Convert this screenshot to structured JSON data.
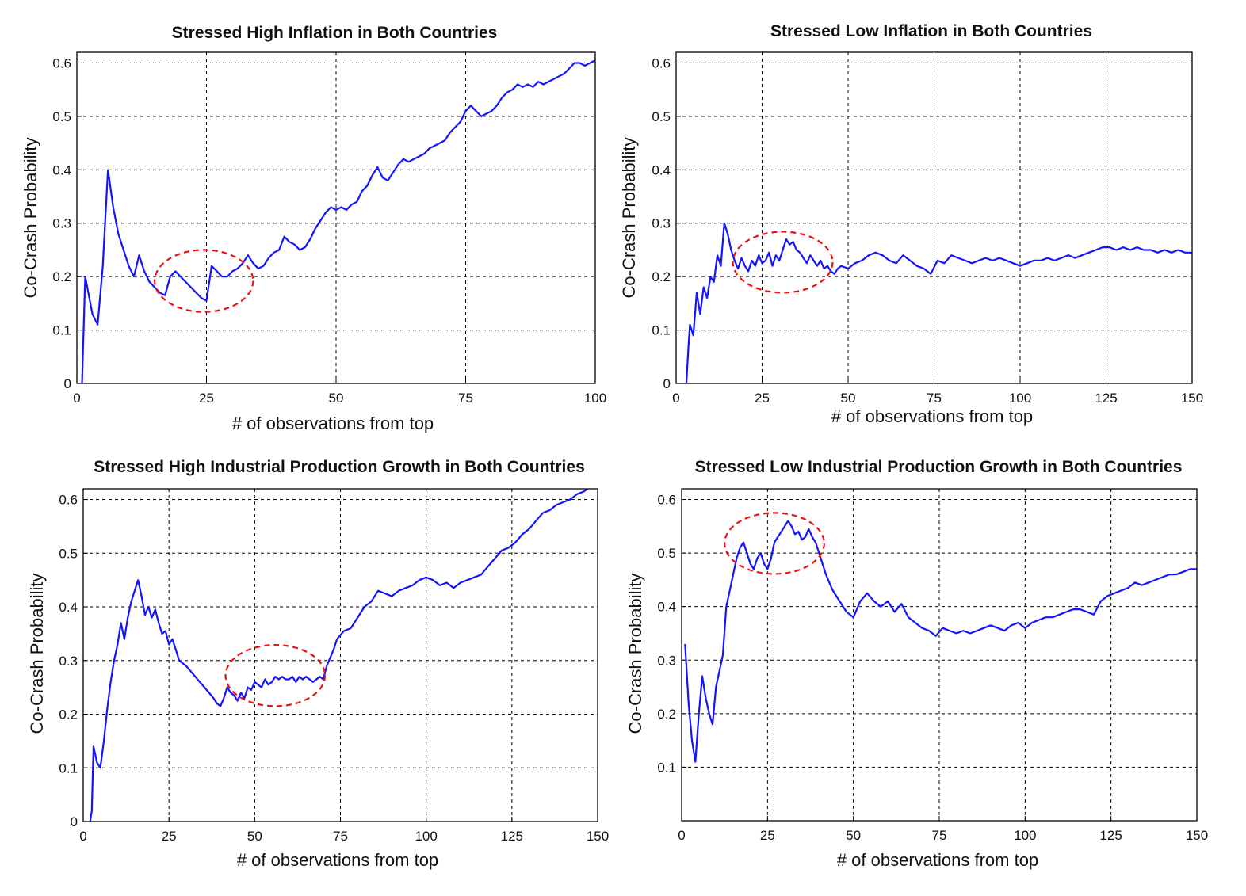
{
  "chart_data": [
    {
      "type": "line",
      "title": "Stressed High Inflation in Both Countries",
      "xlabel": "# of observations from top",
      "ylabel": "Co-Crash Probability",
      "xlim": [
        0,
        100
      ],
      "ylim": [
        0,
        0.62
      ],
      "xticks": [
        0,
        25,
        50,
        75,
        100
      ],
      "xtick_labels": [
        "0",
        "25",
        "50",
        "75",
        "100"
      ],
      "yticks": [
        0,
        0.1,
        0.2,
        0.3,
        0.4,
        0.5,
        0.6
      ],
      "ytick_labels": [
        "0",
        "0.1",
        "0.2",
        "0.3",
        "0.4",
        "0.5",
        "0.6"
      ],
      "grid": true,
      "series_color": "#1414ff",
      "highlight_color": "#ee1111",
      "highlight": {
        "x_center": 24.5,
        "y_center": 0.192,
        "x_radius": 9.5,
        "y_radius": 0.058
      },
      "series": [
        {
          "x": [
            1,
            1.6,
            2,
            3,
            4,
            5,
            6,
            7,
            8,
            9,
            10,
            11,
            12,
            13,
            14,
            15,
            16,
            17,
            18,
            19,
            20,
            21,
            22,
            23,
            24,
            25,
            26,
            27,
            28,
            29,
            30,
            31,
            32,
            33,
            34,
            35,
            36,
            37,
            38,
            39,
            40,
            41,
            42,
            43,
            44,
            45,
            46,
            47,
            48,
            49,
            50,
            51,
            52,
            53,
            54,
            55,
            56,
            57,
            58,
            59,
            60,
            61,
            62,
            63,
            64,
            65,
            66,
            67,
            68,
            69,
            70,
            71,
            72,
            73,
            74,
            75,
            76,
            77,
            78,
            79,
            80,
            81,
            82,
            83,
            84,
            85,
            86,
            87,
            88,
            89,
            90,
            91,
            92,
            93,
            94,
            95,
            96,
            97,
            98,
            99,
            100
          ],
          "y": [
            0,
            0.2,
            0.18,
            0.13,
            0.11,
            0.22,
            0.4,
            0.33,
            0.28,
            0.25,
            0.22,
            0.2,
            0.24,
            0.21,
            0.19,
            0.18,
            0.17,
            0.165,
            0.2,
            0.21,
            0.2,
            0.19,
            0.18,
            0.17,
            0.16,
            0.155,
            0.22,
            0.21,
            0.2,
            0.2,
            0.21,
            0.215,
            0.225,
            0.24,
            0.225,
            0.215,
            0.22,
            0.235,
            0.245,
            0.25,
            0.275,
            0.265,
            0.26,
            0.25,
            0.255,
            0.27,
            0.29,
            0.305,
            0.32,
            0.33,
            0.325,
            0.33,
            0.325,
            0.335,
            0.34,
            0.36,
            0.37,
            0.39,
            0.405,
            0.385,
            0.38,
            0.395,
            0.41,
            0.42,
            0.415,
            0.42,
            0.425,
            0.43,
            0.44,
            0.445,
            0.45,
            0.455,
            0.47,
            0.48,
            0.49,
            0.51,
            0.52,
            0.51,
            0.5,
            0.505,
            0.51,
            0.52,
            0.535,
            0.545,
            0.55,
            0.56,
            0.555,
            0.56,
            0.555,
            0.565,
            0.56,
            0.565,
            0.57,
            0.575,
            0.58,
            0.59,
            0.6,
            0.6,
            0.595,
            0.6,
            0.605
          ]
        }
      ]
    },
    {
      "type": "line",
      "title": "Stressed Low Inflation in Both Countries",
      "xlabel": "# of observations from top",
      "ylabel": "Co-Crash Probability",
      "xlim": [
        0,
        150
      ],
      "ylim": [
        0,
        0.62
      ],
      "xticks": [
        0,
        25,
        50,
        75,
        100,
        125,
        150
      ],
      "xtick_labels": [
        "0",
        "25",
        "50",
        "75",
        "100",
        "125",
        "150"
      ],
      "yticks": [
        0,
        0.1,
        0.2,
        0.3,
        0.4,
        0.5,
        0.6
      ],
      "ytick_labels": [
        "0",
        "0.1",
        "0.2",
        "0.3",
        "0.4",
        "0.5",
        "0.6"
      ],
      "grid": true,
      "series_color": "#1414ff",
      "highlight_color": "#ee1111",
      "highlight": {
        "x_center": 31,
        "y_center": 0.227,
        "x_radius": 14.5,
        "y_radius": 0.057
      },
      "series": [
        {
          "x": [
            3,
            3.5,
            4,
            5,
            6,
            7,
            8,
            9,
            10,
            11,
            12,
            13,
            14,
            15,
            16,
            17,
            18,
            19,
            20,
            21,
            22,
            23,
            24,
            25,
            26,
            27,
            28,
            29,
            30,
            31,
            32,
            33,
            34,
            35,
            36,
            37,
            38,
            39,
            40,
            41,
            42,
            43,
            44,
            45,
            46,
            47,
            48,
            50,
            52,
            54,
            56,
            58,
            60,
            62,
            64,
            66,
            68,
            70,
            72,
            74,
            76,
            78,
            80,
            82,
            84,
            86,
            88,
            90,
            92,
            94,
            96,
            98,
            100,
            102,
            104,
            106,
            108,
            110,
            112,
            114,
            116,
            118,
            120,
            122,
            124,
            126,
            128,
            130,
            132,
            134,
            136,
            138,
            140,
            142,
            144,
            146,
            148,
            150
          ],
          "y": [
            0,
            0.06,
            0.11,
            0.09,
            0.17,
            0.13,
            0.18,
            0.16,
            0.2,
            0.19,
            0.24,
            0.22,
            0.3,
            0.28,
            0.25,
            0.23,
            0.215,
            0.235,
            0.22,
            0.21,
            0.23,
            0.22,
            0.24,
            0.225,
            0.23,
            0.245,
            0.22,
            0.24,
            0.23,
            0.25,
            0.27,
            0.26,
            0.265,
            0.25,
            0.245,
            0.235,
            0.225,
            0.24,
            0.23,
            0.22,
            0.23,
            0.215,
            0.22,
            0.21,
            0.205,
            0.215,
            0.22,
            0.215,
            0.225,
            0.23,
            0.24,
            0.245,
            0.24,
            0.23,
            0.225,
            0.24,
            0.23,
            0.22,
            0.215,
            0.205,
            0.23,
            0.225,
            0.24,
            0.235,
            0.23,
            0.225,
            0.23,
            0.235,
            0.23,
            0.235,
            0.23,
            0.225,
            0.22,
            0.225,
            0.23,
            0.23,
            0.235,
            0.23,
            0.235,
            0.24,
            0.235,
            0.24,
            0.245,
            0.25,
            0.255,
            0.255,
            0.25,
            0.255,
            0.25,
            0.255,
            0.25,
            0.25,
            0.245,
            0.25,
            0.245,
            0.25,
            0.245,
            0.245
          ]
        }
      ]
    },
    {
      "type": "line",
      "title": "Stressed High Industrial Production Growth in Both Countries",
      "xlabel": "# of observations from top",
      "ylabel": "Co-Crash Probability",
      "xlim": [
        0,
        150
      ],
      "ylim": [
        0,
        0.62
      ],
      "xticks": [
        0,
        25,
        50,
        75,
        100,
        125,
        150
      ],
      "xtick_labels": [
        "0",
        "25",
        "50",
        "75",
        "100",
        "125",
        "150"
      ],
      "yticks": [
        0,
        0.1,
        0.2,
        0.3,
        0.4,
        0.5,
        0.6
      ],
      "ytick_labels": [
        "0",
        "0.1",
        "0.2",
        "0.3",
        "0.4",
        "0.5",
        "0.6"
      ],
      "grid": true,
      "series_color": "#1414ff",
      "highlight_color": "#ee1111",
      "highlight": {
        "x_center": 56,
        "y_center": 0.272,
        "x_radius": 14.5,
        "y_radius": 0.057
      },
      "series": [
        {
          "x": [
            2,
            2.5,
            3,
            4,
            5,
            6,
            7,
            8,
            9,
            10,
            11,
            12,
            13,
            14,
            15,
            16,
            17,
            18,
            19,
            20,
            21,
            22,
            23,
            24,
            25,
            26,
            27,
            28,
            30,
            32,
            34,
            36,
            38,
            39,
            40,
            41,
            42,
            43,
            44,
            45,
            46,
            47,
            48,
            49,
            50,
            51,
            52,
            53,
            54,
            55,
            56,
            57,
            58,
            59,
            60,
            61,
            62,
            63,
            64,
            65,
            66,
            67,
            68,
            69,
            70,
            71,
            72,
            73,
            74,
            76,
            78,
            80,
            82,
            84,
            86,
            88,
            90,
            92,
            94,
            96,
            98,
            100,
            102,
            104,
            106,
            108,
            110,
            112,
            114,
            116,
            118,
            120,
            122,
            124,
            126,
            128,
            130,
            132,
            134,
            136,
            138,
            140,
            142,
            144,
            146,
            148
          ],
          "y": [
            0,
            0.02,
            0.14,
            0.11,
            0.1,
            0.15,
            0.21,
            0.26,
            0.3,
            0.33,
            0.37,
            0.34,
            0.38,
            0.41,
            0.43,
            0.45,
            0.42,
            0.385,
            0.4,
            0.38,
            0.395,
            0.37,
            0.35,
            0.355,
            0.33,
            0.34,
            0.32,
            0.3,
            0.29,
            0.275,
            0.26,
            0.245,
            0.23,
            0.22,
            0.215,
            0.23,
            0.25,
            0.24,
            0.235,
            0.225,
            0.24,
            0.23,
            0.25,
            0.245,
            0.26,
            0.255,
            0.25,
            0.265,
            0.255,
            0.26,
            0.27,
            0.265,
            0.27,
            0.265,
            0.265,
            0.27,
            0.26,
            0.27,
            0.265,
            0.27,
            0.265,
            0.26,
            0.265,
            0.27,
            0.265,
            0.29,
            0.305,
            0.32,
            0.34,
            0.355,
            0.36,
            0.38,
            0.4,
            0.41,
            0.43,
            0.425,
            0.42,
            0.43,
            0.435,
            0.44,
            0.45,
            0.455,
            0.45,
            0.44,
            0.445,
            0.435,
            0.445,
            0.45,
            0.455,
            0.46,
            0.475,
            0.49,
            0.505,
            0.51,
            0.52,
            0.535,
            0.545,
            0.56,
            0.575,
            0.58,
            0.59,
            0.595,
            0.6,
            0.61,
            0.615,
            0.625
          ]
        }
      ]
    },
    {
      "type": "line",
      "title": "Stressed Low Industrial Production Growth in Both Countries",
      "xlabel": "# of observations from top",
      "ylabel": "Co-Crash Probability",
      "xlim": [
        0,
        150
      ],
      "ylim": [
        0,
        0.62
      ],
      "xticks": [
        0,
        25,
        50,
        75,
        100,
        125,
        150
      ],
      "xtick_labels": [
        "0",
        "25",
        "50",
        "75",
        "100",
        "125",
        "150"
      ],
      "yticks": [
        0.1,
        0.2,
        0.3,
        0.4,
        0.5,
        0.6
      ],
      "ytick_labels": [
        "0.1",
        "0.2",
        "0.3",
        "0.4",
        "0.5",
        "0.6"
      ],
      "grid": true,
      "series_color": "#1414ff",
      "highlight_color": "#ee1111",
      "highlight": {
        "x_center": 27,
        "y_center": 0.518,
        "x_radius": 14.5,
        "y_radius": 0.057
      },
      "series": [
        {
          "x": [
            1,
            2,
            3,
            4,
            5,
            6,
            7,
            8,
            9,
            10,
            11,
            12,
            13,
            14,
            15,
            16,
            17,
            18,
            19,
            20,
            21,
            22,
            23,
            24,
            25,
            26,
            27,
            28,
            29,
            30,
            31,
            32,
            33,
            34,
            35,
            36,
            37,
            38,
            39,
            40,
            41,
            42,
            43,
            44,
            46,
            48,
            50,
            52,
            54,
            56,
            58,
            60,
            62,
            64,
            66,
            68,
            70,
            72,
            74,
            76,
            78,
            80,
            82,
            84,
            86,
            88,
            90,
            92,
            94,
            96,
            98,
            100,
            102,
            104,
            106,
            108,
            110,
            112,
            114,
            116,
            118,
            120,
            122,
            124,
            126,
            128,
            130,
            132,
            134,
            136,
            138,
            140,
            142,
            144,
            146,
            148,
            150
          ],
          "y": [
            0.33,
            0.22,
            0.15,
            0.11,
            0.2,
            0.27,
            0.23,
            0.2,
            0.18,
            0.25,
            0.28,
            0.31,
            0.4,
            0.43,
            0.46,
            0.49,
            0.51,
            0.52,
            0.5,
            0.48,
            0.47,
            0.49,
            0.5,
            0.48,
            0.47,
            0.49,
            0.52,
            0.53,
            0.54,
            0.55,
            0.56,
            0.55,
            0.535,
            0.54,
            0.525,
            0.53,
            0.545,
            0.53,
            0.52,
            0.5,
            0.48,
            0.46,
            0.445,
            0.43,
            0.41,
            0.39,
            0.38,
            0.41,
            0.425,
            0.41,
            0.4,
            0.41,
            0.39,
            0.405,
            0.38,
            0.37,
            0.36,
            0.355,
            0.345,
            0.36,
            0.355,
            0.35,
            0.355,
            0.35,
            0.355,
            0.36,
            0.365,
            0.36,
            0.355,
            0.365,
            0.37,
            0.36,
            0.37,
            0.375,
            0.38,
            0.38,
            0.385,
            0.39,
            0.395,
            0.395,
            0.39,
            0.385,
            0.41,
            0.42,
            0.425,
            0.43,
            0.435,
            0.445,
            0.44,
            0.445,
            0.45,
            0.455,
            0.46,
            0.46,
            0.465,
            0.47,
            0.47
          ]
        }
      ]
    }
  ]
}
